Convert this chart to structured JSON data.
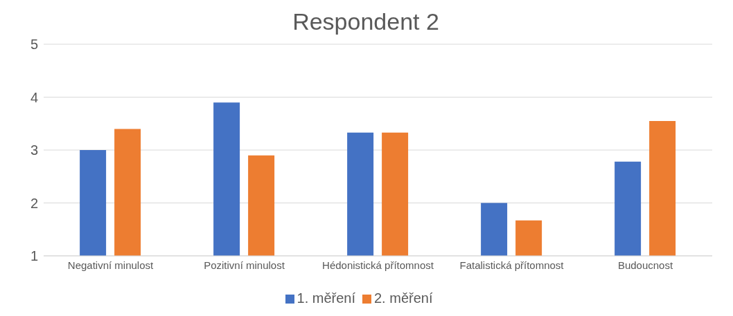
{
  "chart_data": {
    "type": "bar",
    "title": "Respondent 2",
    "categories": [
      "Negativní minulost",
      "Pozitivní minulost",
      "Hédonistická přítomnost",
      "Fatalistická přítomnost",
      "Budoucnost"
    ],
    "series": [
      {
        "name": "1. měření",
        "color": "#4472c4",
        "values": [
          3.0,
          3.9,
          3.33,
          2.0,
          2.78
        ]
      },
      {
        "name": "2. měření",
        "color": "#ed7d31",
        "values": [
          3.4,
          2.9,
          3.33,
          1.67,
          3.55
        ]
      }
    ],
    "ylim": [
      1,
      5
    ],
    "yticks": [
      1,
      2,
      3,
      4,
      5
    ],
    "grid": "y",
    "legend": "bottom"
  }
}
